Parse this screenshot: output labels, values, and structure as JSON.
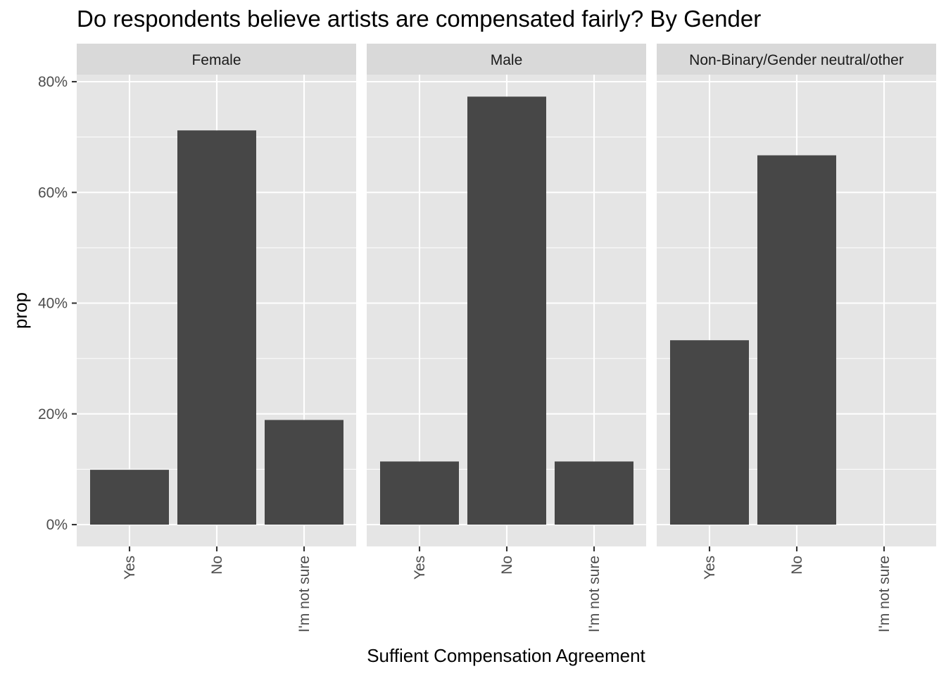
{
  "chart_data": {
    "type": "bar",
    "title": "Do respondents believe artists are compensated fairly? By Gender",
    "xlabel": "Suffient Compensation Agreement",
    "ylabel": "prop",
    "ylim": [
      0,
      0.8
    ],
    "y_ticks": [
      0,
      0.2,
      0.4,
      0.6,
      0.8
    ],
    "y_tick_labels": [
      "0%",
      "20%",
      "40%",
      "60%",
      "80%"
    ],
    "categories": [
      "Yes",
      "No",
      "I'm not sure"
    ],
    "grid": true,
    "facets": [
      {
        "name": "Female",
        "values": [
          0.099,
          0.712,
          0.189
        ]
      },
      {
        "name": "Male",
        "values": [
          0.114,
          0.773,
          0.114
        ]
      },
      {
        "name": "Non-Binary/Gender neutral/other",
        "values": [
          0.333,
          0.667,
          0.0
        ]
      }
    ],
    "bar_color": "#474747",
    "panel_color": "#e5e5e5",
    "strip_color": "#d9d9d9"
  }
}
